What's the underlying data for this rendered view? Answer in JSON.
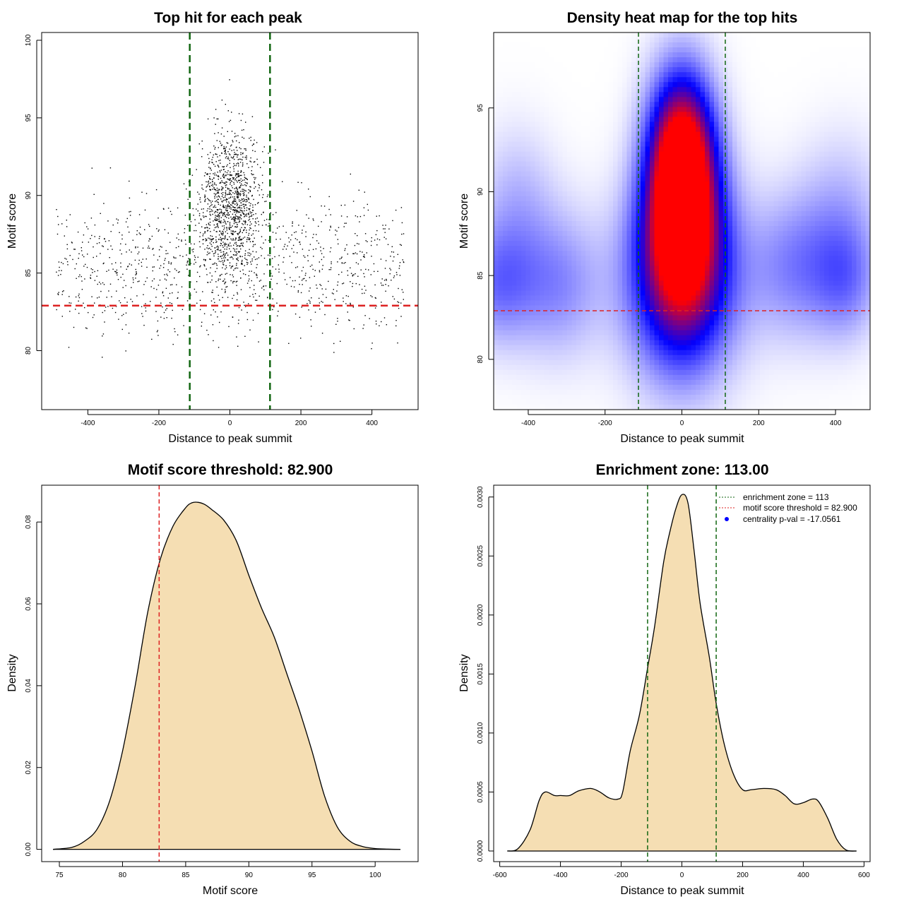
{
  "chart_data": [
    {
      "id": "scatter",
      "type": "scatter",
      "title": "Top hit for each peak",
      "xlabel": "Distance to peak summit",
      "ylabel": "Motif score",
      "xlim": [
        -530,
        530
      ],
      "ylim": [
        76.2,
        100.5
      ],
      "xticks": [
        -400,
        -200,
        0,
        200,
        400
      ],
      "yticks": [
        80,
        85,
        90,
        95,
        100
      ],
      "n_points": 2200,
      "point_distribution": "dense central band between -113 and 113, sparse uniform background across -490 to 490, scores concentrated 80-97",
      "hlines": [
        {
          "y": 82.9,
          "color": "#dd2222",
          "style": "dashed"
        }
      ],
      "vlines": [
        {
          "x": -113,
          "color": "#116611",
          "style": "dashed"
        },
        {
          "x": 113,
          "color": "#116611",
          "style": "dashed"
        }
      ]
    },
    {
      "id": "heatmap",
      "type": "heatmap",
      "title": "Density heat map for the top hits",
      "xlabel": "Distance to peak summit",
      "ylabel": "Motif score",
      "xlim": [
        -490,
        490
      ],
      "ylim": [
        77,
        99.5
      ],
      "xticks": [
        -400,
        -200,
        0,
        200,
        400
      ],
      "yticks": [
        80,
        85,
        90,
        95
      ],
      "color_scale": [
        "#ffffff",
        "#0000ff",
        "#ff0000"
      ],
      "blobs": [
        {
          "x": 0,
          "y": 90,
          "amp": 1.6,
          "sx": 60,
          "sy": 4
        },
        {
          "x": 0,
          "y": 85,
          "amp": 1.0,
          "sx": 95,
          "sy": 4
        },
        {
          "x": 0,
          "y": 93,
          "amp": 0.5,
          "sx": 55,
          "sy": 3
        },
        {
          "x": -480,
          "y": 84.5,
          "amp": 0.35,
          "sx": 70,
          "sy": 2.5
        },
        {
          "x": -320,
          "y": 84.5,
          "amp": 0.3,
          "sx": 80,
          "sy": 3
        },
        {
          "x": 300,
          "y": 85.5,
          "amp": 0.33,
          "sx": 90,
          "sy": 3
        },
        {
          "x": 430,
          "y": 84.8,
          "amp": 0.3,
          "sx": 60,
          "sy": 2.5
        },
        {
          "x": -430,
          "y": 89.5,
          "amp": 0.18,
          "sx": 70,
          "sy": 3
        },
        {
          "x": 420,
          "y": 89.5,
          "amp": 0.15,
          "sx": 80,
          "sy": 3
        }
      ],
      "hlines": [
        {
          "y": 82.9,
          "color": "#dd2222",
          "style": "dashed"
        }
      ],
      "vlines": [
        {
          "x": -113,
          "color": "#116611",
          "style": "dashed"
        },
        {
          "x": 113,
          "color": "#116611",
          "style": "dashed"
        }
      ]
    },
    {
      "id": "density-score",
      "type": "area",
      "title": "Motif score threshold: 82.900",
      "xlabel": "Motif score",
      "ylabel": "Density",
      "xlim": [
        73.6,
        103.4
      ],
      "ylim": [
        -0.003,
        0.089
      ],
      "xticks": [
        75,
        80,
        85,
        90,
        95,
        100
      ],
      "yticks": [
        0.0,
        0.02,
        0.04,
        0.06,
        0.08
      ],
      "ytick_labels": [
        "0.00",
        "0.02",
        "0.04",
        "0.06",
        "0.08"
      ],
      "fill": "#f5deb3",
      "x": [
        74.5,
        76,
        77,
        78,
        79,
        80,
        81,
        82,
        83,
        84,
        85,
        85.5,
        86,
        86.5,
        87,
        88,
        89,
        90,
        91,
        92,
        93,
        94,
        95,
        96,
        97,
        98,
        99,
        100,
        101,
        102
      ],
      "y": [
        0.0,
        0.0005,
        0.002,
        0.005,
        0.012,
        0.024,
        0.04,
        0.058,
        0.071,
        0.079,
        0.0835,
        0.0847,
        0.0848,
        0.0843,
        0.0832,
        0.0805,
        0.0755,
        0.067,
        0.059,
        0.052,
        0.043,
        0.034,
        0.024,
        0.013,
        0.0055,
        0.002,
        0.0007,
        0.0002,
        5e-05,
        0.0
      ],
      "vlines": [
        {
          "x": 82.9,
          "color": "#dd2222",
          "style": "dashed"
        }
      ]
    },
    {
      "id": "density-distance",
      "type": "area",
      "title": "Enrichment zone: 113.00",
      "xlabel": "Distance to peak summit",
      "ylabel": "Density",
      "xlim": [
        -620,
        620
      ],
      "ylim": [
        -9e-05,
        0.0031
      ],
      "xticks": [
        -600,
        -400,
        -200,
        0,
        200,
        400,
        600
      ],
      "yticks": [
        0.0,
        0.0005,
        0.001,
        0.0015,
        0.002,
        0.0025,
        0.003
      ],
      "ytick_labels": [
        "0.0000",
        "0.0005",
        "0.0010",
        "0.0015",
        "0.0020",
        "0.0025",
        "0.0030"
      ],
      "fill": "#f5deb3",
      "x": [
        -575,
        -540,
        -500,
        -470,
        -450,
        -420,
        -400,
        -370,
        -340,
        -300,
        -270,
        -240,
        -210,
        -195,
        -170,
        -140,
        -113,
        -90,
        -60,
        -40,
        -20,
        0,
        20,
        40,
        60,
        90,
        113,
        140,
        170,
        200,
        230,
        270,
        310,
        340,
        370,
        400,
        430,
        450,
        480,
        510,
        540,
        575
      ],
      "y": [
        0.0,
        2e-05,
        0.00018,
        0.00043,
        0.0005,
        0.00047,
        0.00047,
        0.00047,
        0.00051,
        0.00053,
        0.0005,
        0.00045,
        0.00044,
        0.0005,
        0.00085,
        0.00115,
        0.00155,
        0.0019,
        0.00245,
        0.0027,
        0.0029,
        0.00302,
        0.00295,
        0.00255,
        0.0021,
        0.00165,
        0.00125,
        0.0009,
        0.00065,
        0.00052,
        0.00052,
        0.00053,
        0.00052,
        0.00047,
        0.0004,
        0.00041,
        0.00044,
        0.00042,
        0.00028,
        0.0001,
        1e-05,
        0.0
      ],
      "vlines": [
        {
          "x": -113,
          "color": "#116611",
          "style": "dashed"
        },
        {
          "x": 113,
          "color": "#116611",
          "style": "dashed"
        }
      ],
      "legend": [
        {
          "label": "enrichment zone = 113",
          "kind": "line",
          "color": "#116611"
        },
        {
          "label": "motif score threshold = 82.900",
          "kind": "line",
          "color": "#dd2222"
        },
        {
          "label": "centrality p-val = -17.0561",
          "kind": "point",
          "color": "#0000ff"
        }
      ],
      "legend_position": "top-right"
    }
  ]
}
